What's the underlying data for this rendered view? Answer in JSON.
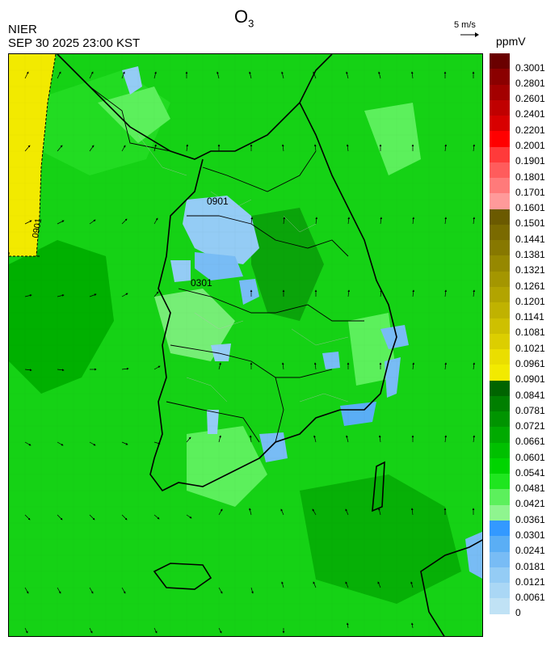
{
  "title": {
    "main": "O",
    "sub": "3"
  },
  "organization": "NIER",
  "timestamp": "SEP 30 2025 23:00 KST",
  "wind_reference": {
    "label": "5 m/s",
    "arrow": "→"
  },
  "unit": "ppmV",
  "contour_labels": [
    "0901",
    "0301",
    "0901"
  ],
  "colorbar": {
    "labels": [
      "0.3001",
      "0.2801",
      "0.2601",
      "0.2401",
      "0.2201",
      "0.2001",
      "0.1901",
      "0.1801",
      "0.1701",
      "0.1601",
      "0.1501",
      "0.1441",
      "0.1381",
      "0.1321",
      "0.1261",
      "0.1201",
      "0.1141",
      "0.1081",
      "0.1021",
      "0.0961",
      "0.0901",
      "0.0841",
      "0.0781",
      "0.0721",
      "0.0661",
      "0.0601",
      "0.0541",
      "0.0481",
      "0.0421",
      "0.0361",
      "0.0301",
      "0.0241",
      "0.0181",
      "0.0121",
      "0.0061",
      "0"
    ],
    "colors": [
      "#6a0000",
      "#8b0000",
      "#a30000",
      "#c00000",
      "#d80000",
      "#ff0000",
      "#ff3a3a",
      "#ff5c5c",
      "#ff7a7a",
      "#ff9a9a",
      "#6b5a00",
      "#7a6a00",
      "#877800",
      "#968800",
      "#a49600",
      "#b2a400",
      "#c0b200",
      "#cec000",
      "#dcce00",
      "#eade00",
      "#f2ea00",
      "#006400",
      "#007f00",
      "#009400",
      "#00aa00",
      "#00c000",
      "#00d400",
      "#1fe61f",
      "#5cf05c",
      "#8ff58f",
      "#3399ff",
      "#5aaef5",
      "#78bcf5",
      "#94ccf5",
      "#aad7f5",
      "#c0e2f5"
    ]
  }
}
